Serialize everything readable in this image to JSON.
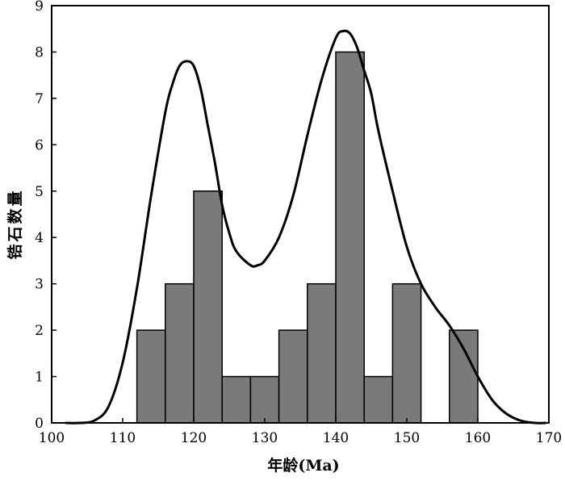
{
  "chart_data": {
    "type": "bar",
    "title": "",
    "xlabel": "年龄(Ma)",
    "ylabel": "锆石数量",
    "xlim": [
      100,
      170
    ],
    "ylim": [
      0,
      9
    ],
    "x_ticks": [
      "100",
      "110",
      "120",
      "130",
      "140",
      "150",
      "160",
      "170"
    ],
    "y_ticks": [
      "0",
      "1",
      "2",
      "3",
      "4",
      "5",
      "6",
      "7",
      "8",
      "9"
    ],
    "grid": false,
    "legend": "none",
    "bin_width": 4,
    "bins": [
      {
        "x0": 112,
        "x1": 116,
        "count": 2
      },
      {
        "x0": 116,
        "x1": 120,
        "count": 3
      },
      {
        "x0": 120,
        "x1": 124,
        "count": 5
      },
      {
        "x0": 124,
        "x1": 128,
        "count": 1
      },
      {
        "x0": 128,
        "x1": 132,
        "count": 1
      },
      {
        "x0": 132,
        "x1": 136,
        "count": 2
      },
      {
        "x0": 136,
        "x1": 140,
        "count": 3
      },
      {
        "x0": 140,
        "x1": 144,
        "count": 8
      },
      {
        "x0": 144,
        "x1": 148,
        "count": 1
      },
      {
        "x0": 148,
        "x1": 152,
        "count": 3
      },
      {
        "x0": 152,
        "x1": 156,
        "count": 0
      },
      {
        "x0": 156,
        "x1": 160,
        "count": 2
      }
    ],
    "density_curve": {
      "x": [
        102,
        104,
        106,
        108,
        110,
        112,
        114,
        116,
        117,
        118,
        119,
        120,
        121,
        122,
        123,
        124,
        125,
        126,
        128,
        129,
        130,
        132,
        134,
        136,
        138,
        140,
        141,
        142,
        143,
        144,
        145,
        146,
        148,
        150,
        152,
        154,
        156,
        158,
        160,
        162,
        164,
        166,
        168,
        169.5
      ],
      "y": [
        0,
        0,
        0.05,
        0.35,
        1.3,
        2.9,
        4.9,
        6.7,
        7.3,
        7.7,
        7.8,
        7.7,
        7.2,
        6.4,
        5.6,
        4.7,
        4.1,
        3.7,
        3.4,
        3.4,
        3.5,
        4.0,
        4.9,
        6.2,
        7.4,
        8.3,
        8.45,
        8.4,
        8.1,
        7.6,
        7.1,
        6.3,
        5.0,
        3.8,
        3.0,
        2.5,
        2.1,
        1.6,
        1.0,
        0.5,
        0.2,
        0.05,
        0,
        0
      ]
    },
    "colors": {
      "bar_fill": "#7a7a7a",
      "bar_edge": "#000000",
      "curve": "#000000",
      "axis": "#000000"
    }
  }
}
